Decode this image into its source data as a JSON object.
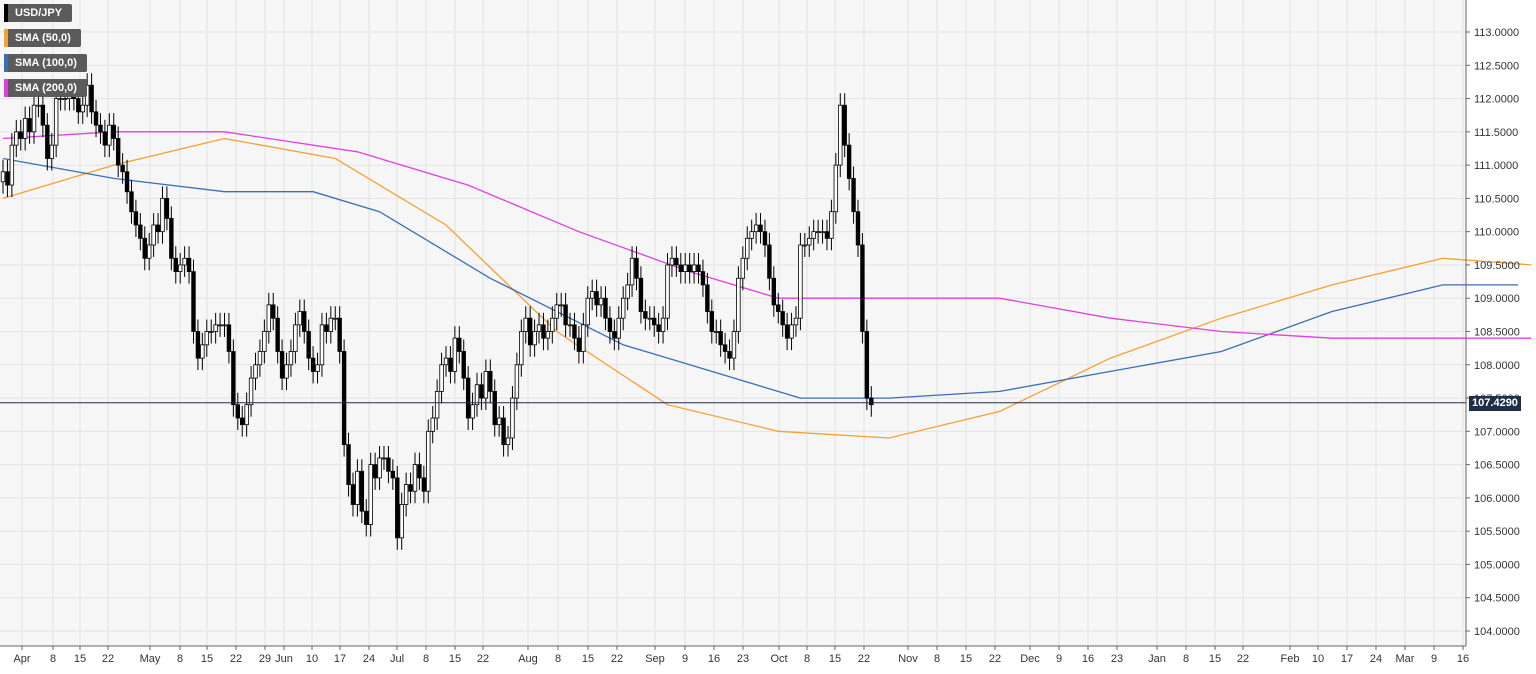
{
  "legend": {
    "items": [
      {
        "label": "USD/JPY",
        "color": "#000000"
      },
      {
        "label": "SMA (50,0)",
        "color": "#f5a033"
      },
      {
        "label": "SMA (100,0)",
        "color": "#3a6fb5"
      },
      {
        "label": "SMA (200,0)",
        "color": "#e040e0"
      }
    ]
  },
  "price_tag": "107.4290",
  "chart_data": {
    "type": "candlestick",
    "title": "",
    "xlabel": "",
    "ylabel": "",
    "ylim": [
      103.8,
      113.5
    ],
    "grid": true,
    "legend_position": "top-left",
    "current_price": 107.429,
    "y_ticks": [
      "104.0000",
      "104.5000",
      "105.0000",
      "105.5000",
      "106.0000",
      "106.5000",
      "107.0000",
      "107.5000",
      "108.0000",
      "108.5000",
      "109.0000",
      "109.5000",
      "110.0000",
      "110.5000",
      "111.0000",
      "111.5000",
      "112.0000",
      "112.5000",
      "113.0000"
    ],
    "x_ticks": [
      "Apr",
      "8",
      "15",
      "22",
      "May",
      "8",
      "15",
      "22",
      "29",
      "Jun",
      "10",
      "17",
      "24",
      "Jul",
      "8",
      "15",
      "22",
      "Aug",
      "8",
      "15",
      "22",
      "Sep",
      "9",
      "16",
      "23",
      "Oct",
      "8",
      "15",
      "22",
      "Nov",
      "8",
      "15",
      "22",
      "Dec",
      "9",
      "16",
      "23",
      "Jan",
      "8",
      "15",
      "22",
      "Feb",
      "10",
      "17",
      "24",
      "Mar",
      "9",
      "16"
    ],
    "series": [
      {
        "name": "USD/JPY",
        "color": "#000000",
        "close": [
          110.9,
          110.7,
          111.3,
          111.5,
          111.4,
          111.7,
          111.5,
          111.9,
          111.9,
          111.6,
          111.1,
          111.3,
          112.0,
          112.0,
          112.0,
          112.1,
          112.0,
          111.8,
          111.9,
          112.2,
          111.8,
          111.6,
          111.5,
          111.3,
          111.6,
          111.4,
          111.0,
          110.9,
          110.6,
          110.3,
          110.1,
          109.9,
          109.6,
          109.8,
          110.1,
          110.0,
          110.5,
          110.2,
          109.6,
          109.4,
          109.5,
          109.6,
          109.4,
          108.5,
          108.1,
          108.3,
          108.5,
          108.5,
          108.6,
          108.6,
          108.6,
          108.2,
          107.4,
          107.2,
          107.1,
          107.4,
          107.8,
          108.0,
          108.2,
          108.5,
          108.9,
          108.7,
          108.2,
          107.8,
          108.0,
          108.2,
          108.6,
          108.8,
          108.5,
          108.1,
          107.9,
          108.0,
          108.6,
          108.5,
          108.7,
          108.7,
          108.2,
          106.8,
          106.2,
          105.9,
          106.4,
          105.8,
          105.6,
          106.5,
          106.3,
          106.6,
          106.6,
          106.4,
          106.3,
          105.4,
          105.9,
          106.2,
          106.1,
          106.5,
          106.3,
          106.1,
          107.0,
          107.2,
          107.6,
          108.0,
          108.1,
          107.9,
          108.4,
          108.2,
          107.8,
          107.2,
          107.4,
          107.7,
          107.5,
          107.9,
          107.6,
          107.1,
          107.2,
          106.8,
          106.9,
          107.5,
          108.0,
          108.5,
          108.7,
          108.3,
          108.5,
          108.6,
          108.4,
          108.5,
          108.7,
          108.9,
          108.9,
          108.6,
          108.6,
          108.4,
          108.2,
          108.6,
          109.0,
          109.1,
          108.9,
          109.0,
          108.7,
          108.5,
          108.4,
          108.7,
          109.0,
          109.2,
          109.6,
          109.3,
          108.8,
          108.7,
          108.7,
          108.6,
          108.5,
          108.7,
          109.5,
          109.6,
          109.5,
          109.4,
          109.5,
          109.4,
          109.5,
          109.4,
          109.2,
          108.8,
          108.5,
          108.5,
          108.3,
          108.2,
          108.1,
          108.5,
          109.3,
          109.6,
          109.9,
          110.0,
          110.1,
          110.0,
          109.8,
          109.3,
          108.9,
          108.8,
          108.6,
          108.4,
          108.6,
          108.7,
          109.8,
          109.8,
          109.9,
          110.0,
          110.0,
          110.0,
          109.9,
          110.3,
          111.0,
          111.9,
          111.3,
          110.8,
          110.3,
          109.8,
          108.5,
          107.5,
          107.4
        ]
      }
    ],
    "sma": [
      {
        "name": "SMA (50,0)",
        "color": "#f5a033",
        "points": [
          [
            0,
            110.5
          ],
          [
            25,
            111.0
          ],
          [
            50,
            111.4
          ],
          [
            75,
            111.1
          ],
          [
            100,
            110.1
          ],
          [
            125,
            108.5
          ],
          [
            150,
            107.4
          ],
          [
            175,
            107.0
          ],
          [
            200,
            106.9
          ],
          [
            225,
            107.3
          ],
          [
            250,
            108.1
          ],
          [
            275,
            108.7
          ],
          [
            300,
            109.2
          ],
          [
            325,
            109.6
          ],
          [
            345,
            109.5
          ]
        ]
      },
      {
        "name": "SMA (100,0)",
        "color": "#3a6fb5",
        "points": [
          [
            0,
            111.1
          ],
          [
            25,
            110.8
          ],
          [
            50,
            110.6
          ],
          [
            70,
            110.6
          ],
          [
            85,
            110.3
          ],
          [
            110,
            109.3
          ],
          [
            140,
            108.3
          ],
          [
            160,
            107.9
          ],
          [
            180,
            107.5
          ],
          [
            200,
            107.5
          ],
          [
            225,
            107.6
          ],
          [
            250,
            107.9
          ],
          [
            275,
            108.2
          ],
          [
            300,
            108.8
          ],
          [
            325,
            109.2
          ],
          [
            342,
            109.2
          ]
        ]
      },
      {
        "name": "SMA (200,0)",
        "color": "#e040e0",
        "points": [
          [
            0,
            111.4
          ],
          [
            25,
            111.5
          ],
          [
            50,
            111.5
          ],
          [
            80,
            111.2
          ],
          [
            105,
            110.7
          ],
          [
            130,
            110.0
          ],
          [
            155,
            109.4
          ],
          [
            175,
            109.0
          ],
          [
            200,
            109.0
          ],
          [
            225,
            109.0
          ],
          [
            250,
            108.7
          ],
          [
            275,
            108.5
          ],
          [
            300,
            108.4
          ],
          [
            325,
            108.4
          ],
          [
            345,
            108.4
          ]
        ]
      }
    ]
  }
}
